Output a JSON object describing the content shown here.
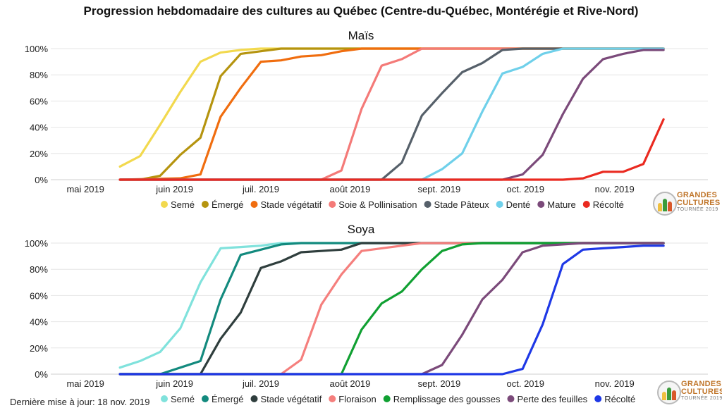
{
  "title": "Progression hebdomadaire des cultures au Québec (Centre-du-Québec, Montérégie et Rive-Nord)",
  "footer": {
    "updated": "Dernière mise à jour: 18 nov. 2019"
  },
  "logo": {
    "line1": "GRANDES",
    "line2": "CULTURES",
    "line3": "TOURNÉE 2019"
  },
  "chart_data": [
    {
      "type": "line",
      "title": "Maïs",
      "x_ticks": [
        "mai 2019",
        "juin 2019",
        "juil. 2019",
        "août 2019",
        "sept. 2019",
        "oct. 2019",
        "nov. 2019"
      ],
      "xlim": [
        "2019-05-01",
        "2019-11-30"
      ],
      "y_ticks": [
        "0%",
        "20%",
        "40%",
        "60%",
        "80%",
        "100%"
      ],
      "ylim": [
        0,
        100
      ],
      "grid": true,
      "legend_position": "bottom",
      "series": [
        {
          "name": "Semé",
          "color": "#f2d94e",
          "points": [
            [
              "2019-05-13",
              10
            ],
            [
              "2019-05-20",
              18
            ],
            [
              "2019-05-27",
              42
            ],
            [
              "2019-06-03",
              67
            ],
            [
              "2019-06-10",
              90
            ],
            [
              "2019-06-17",
              97
            ],
            [
              "2019-06-24",
              99
            ],
            [
              "2019-07-01",
              100
            ],
            [
              "2019-07-08",
              100
            ],
            [
              "2019-11-18",
              100
            ]
          ]
        },
        {
          "name": "Émergé",
          "color": "#b5940f",
          "points": [
            [
              "2019-05-13",
              0
            ],
            [
              "2019-05-20",
              0
            ],
            [
              "2019-05-27",
              3
            ],
            [
              "2019-06-03",
              19
            ],
            [
              "2019-06-10",
              32
            ],
            [
              "2019-06-17",
              79
            ],
            [
              "2019-06-24",
              96
            ],
            [
              "2019-07-01",
              98
            ],
            [
              "2019-07-08",
              100
            ],
            [
              "2019-11-18",
              100
            ]
          ]
        },
        {
          "name": "Stade végétatif",
          "color": "#f06d0f",
          "points": [
            [
              "2019-05-13",
              0
            ],
            [
              "2019-06-03",
              1
            ],
            [
              "2019-06-10",
              4
            ],
            [
              "2019-06-17",
              48
            ],
            [
              "2019-06-24",
              70
            ],
            [
              "2019-07-01",
              90
            ],
            [
              "2019-07-08",
              91
            ],
            [
              "2019-07-15",
              94
            ],
            [
              "2019-07-22",
              95
            ],
            [
              "2019-07-29",
              98
            ],
            [
              "2019-08-05",
              100
            ],
            [
              "2019-11-18",
              100
            ]
          ]
        },
        {
          "name": "Soie & Pollinisation",
          "color": "#f47a78",
          "points": [
            [
              "2019-05-13",
              0
            ],
            [
              "2019-07-22",
              0
            ],
            [
              "2019-07-29",
              7
            ],
            [
              "2019-08-05",
              54
            ],
            [
              "2019-08-12",
              87
            ],
            [
              "2019-08-19",
              92
            ],
            [
              "2019-08-26",
              100
            ],
            [
              "2019-11-18",
              100
            ]
          ]
        },
        {
          "name": "Stade Pâteux",
          "color": "#56606a",
          "points": [
            [
              "2019-05-13",
              0
            ],
            [
              "2019-08-12",
              0
            ],
            [
              "2019-08-19",
              13
            ],
            [
              "2019-08-26",
              49
            ],
            [
              "2019-09-02",
              66
            ],
            [
              "2019-09-09",
              82
            ],
            [
              "2019-09-16",
              89
            ],
            [
              "2019-09-23",
              99
            ],
            [
              "2019-09-30",
              100
            ],
            [
              "2019-11-18",
              100
            ]
          ]
        },
        {
          "name": "Denté",
          "color": "#6fd0ea",
          "points": [
            [
              "2019-05-13",
              0
            ],
            [
              "2019-08-26",
              0
            ],
            [
              "2019-09-02",
              8
            ],
            [
              "2019-09-09",
              20
            ],
            [
              "2019-09-16",
              52
            ],
            [
              "2019-09-23",
              81
            ],
            [
              "2019-09-30",
              86
            ],
            [
              "2019-10-07",
              96
            ],
            [
              "2019-10-14",
              100
            ],
            [
              "2019-11-18",
              100
            ]
          ]
        },
        {
          "name": "Mature",
          "color": "#7b4a7a",
          "points": [
            [
              "2019-05-13",
              0
            ],
            [
              "2019-09-23",
              0
            ],
            [
              "2019-09-30",
              4
            ],
            [
              "2019-10-07",
              19
            ],
            [
              "2019-10-14",
              50
            ],
            [
              "2019-10-21",
              77
            ],
            [
              "2019-10-28",
              92
            ],
            [
              "2019-11-04",
              96
            ],
            [
              "2019-11-11",
              99
            ],
            [
              "2019-11-18",
              99
            ]
          ]
        },
        {
          "name": "Récolté",
          "color": "#ea2a20",
          "points": [
            [
              "2019-05-13",
              0
            ],
            [
              "2019-10-14",
              0
            ],
            [
              "2019-10-21",
              1
            ],
            [
              "2019-10-28",
              6
            ],
            [
              "2019-11-04",
              6
            ],
            [
              "2019-11-11",
              12
            ],
            [
              "2019-11-18",
              46
            ]
          ]
        }
      ]
    },
    {
      "type": "line",
      "title": "Soya",
      "x_ticks": [
        "mai 2019",
        "juin 2019",
        "juil. 2019",
        "août 2019",
        "sept. 2019",
        "oct. 2019",
        "nov. 2019"
      ],
      "xlim": [
        "2019-05-01",
        "2019-11-30"
      ],
      "y_ticks": [
        "0%",
        "20%",
        "40%",
        "60%",
        "80%",
        "100%"
      ],
      "ylim": [
        0,
        100
      ],
      "grid": true,
      "legend_position": "bottom",
      "series": [
        {
          "name": "Semé",
          "color": "#80e2dc",
          "points": [
            [
              "2019-05-13",
              5
            ],
            [
              "2019-05-20",
              10
            ],
            [
              "2019-05-27",
              17
            ],
            [
              "2019-06-03",
              35
            ],
            [
              "2019-06-10",
              70
            ],
            [
              "2019-06-17",
              96
            ],
            [
              "2019-06-24",
              97
            ],
            [
              "2019-07-01",
              98
            ],
            [
              "2019-07-08",
              100
            ],
            [
              "2019-11-18",
              100
            ]
          ]
        },
        {
          "name": "Émergé",
          "color": "#138a7e",
          "points": [
            [
              "2019-05-13",
              0
            ],
            [
              "2019-05-27",
              0
            ],
            [
              "2019-06-03",
              5
            ],
            [
              "2019-06-10",
              10
            ],
            [
              "2019-06-17",
              57
            ],
            [
              "2019-06-24",
              91
            ],
            [
              "2019-07-01",
              95
            ],
            [
              "2019-07-08",
              99
            ],
            [
              "2019-07-15",
              100
            ],
            [
              "2019-11-18",
              100
            ]
          ]
        },
        {
          "name": "Stade végétatif",
          "color": "#2f3e3d",
          "points": [
            [
              "2019-05-13",
              0
            ],
            [
              "2019-06-10",
              0
            ],
            [
              "2019-06-17",
              27
            ],
            [
              "2019-06-24",
              47
            ],
            [
              "2019-07-01",
              81
            ],
            [
              "2019-07-08",
              86
            ],
            [
              "2019-07-15",
              93
            ],
            [
              "2019-07-22",
              94
            ],
            [
              "2019-07-29",
              95
            ],
            [
              "2019-08-05",
              100
            ],
            [
              "2019-11-18",
              100
            ]
          ]
        },
        {
          "name": "Floraison",
          "color": "#f57f7d",
          "points": [
            [
              "2019-05-13",
              0
            ],
            [
              "2019-07-08",
              0
            ],
            [
              "2019-07-15",
              11
            ],
            [
              "2019-07-22",
              53
            ],
            [
              "2019-07-29",
              76
            ],
            [
              "2019-08-05",
              94
            ],
            [
              "2019-08-12",
              96
            ],
            [
              "2019-08-19",
              98
            ],
            [
              "2019-08-26",
              100
            ],
            [
              "2019-11-18",
              100
            ]
          ]
        },
        {
          "name": "Remplissage des gousses",
          "color": "#10a032",
          "points": [
            [
              "2019-05-13",
              0
            ],
            [
              "2019-07-29",
              0
            ],
            [
              "2019-08-05",
              34
            ],
            [
              "2019-08-12",
              54
            ],
            [
              "2019-08-19",
              63
            ],
            [
              "2019-08-26",
              80
            ],
            [
              "2019-09-02",
              94
            ],
            [
              "2019-09-09",
              99
            ],
            [
              "2019-09-16",
              100
            ],
            [
              "2019-11-18",
              100
            ]
          ]
        },
        {
          "name": "Perte des feuilles",
          "color": "#7b4a7a",
          "points": [
            [
              "2019-05-13",
              0
            ],
            [
              "2019-08-26",
              0
            ],
            [
              "2019-09-02",
              7
            ],
            [
              "2019-09-09",
              30
            ],
            [
              "2019-09-16",
              57
            ],
            [
              "2019-09-23",
              72
            ],
            [
              "2019-09-30",
              93
            ],
            [
              "2019-10-07",
              98
            ],
            [
              "2019-10-14",
              99
            ],
            [
              "2019-10-21",
              100
            ],
            [
              "2019-11-18",
              100
            ]
          ]
        },
        {
          "name": "Récolté",
          "color": "#1e38e6",
          "points": [
            [
              "2019-05-13",
              0
            ],
            [
              "2019-09-23",
              0
            ],
            [
              "2019-09-30",
              4
            ],
            [
              "2019-10-07",
              38
            ],
            [
              "2019-10-14",
              84
            ],
            [
              "2019-10-21",
              95
            ],
            [
              "2019-10-28",
              96
            ],
            [
              "2019-11-04",
              97
            ],
            [
              "2019-11-11",
              98
            ],
            [
              "2019-11-18",
              98
            ]
          ]
        }
      ]
    }
  ]
}
